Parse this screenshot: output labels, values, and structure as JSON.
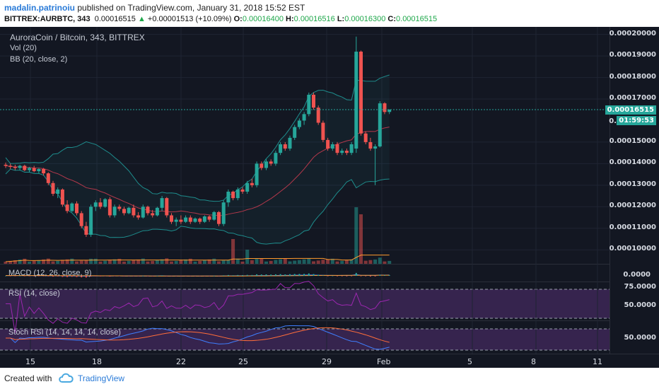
{
  "header": {
    "author": "madalin.patrinoiu",
    "published_text": " published on TradingView.com, January 31, 2018 15:52 EST",
    "symbol": "BITTREX:AURBTC, 343",
    "last": "0.00016515",
    "change_arrow": "▲",
    "change": "+0.00001513 (+10.09%)",
    "o_label": "O:",
    "o": "0.00016400",
    "h_label": "H:",
    "h": "0.00016516",
    "l_label": "L:",
    "l": "0.00016300",
    "c_label": "C:",
    "c": "0.00016515"
  },
  "legends": {
    "title": "AuroraCoin / Bitcoin, 343, BITTREX",
    "vol": "Vol (20)",
    "bb": "BB (20, close, 2)",
    "macd": "MACD (12, 26, close, 9)",
    "rsi": "RSI (14, close)",
    "stoch": "Stoch RSI (14, 14, 14, 14, close)"
  },
  "price_axis": [
    "0.00020000",
    "0.00019000",
    "0.00018000",
    "0.00017000",
    "0.00015000",
    "0.00014000",
    "0.00013000",
    "0.00012000",
    "0.00011000",
    "0.00010000"
  ],
  "partial_label": "0.0",
  "last_price_badge": "0.00016515",
  "countdown_badge": "01:59:53",
  "macd_axis": "0.0000",
  "rsi_axis": [
    "75.0000",
    "50.0000"
  ],
  "stoch_axis": "50.0000",
  "time_axis": [
    "15",
    "18",
    "22",
    "25",
    "29",
    "Feb",
    "5",
    "8",
    "11"
  ],
  "footer": {
    "created_with": "Created with",
    "brand": "TradingView"
  },
  "colors": {
    "up": "#26a69a",
    "down": "#ef5350",
    "bb": "#1e8c8c",
    "accent": "#2a7bd8"
  },
  "chart_data": {
    "type": "candlestick",
    "symbol": "AURBTC",
    "ohlc": [
      [
        0.0001395,
        0.0001405,
        0.000138,
        0.000139
      ],
      [
        0.000139,
        0.00014,
        0.0001375,
        0.0001385
      ],
      [
        0.0001385,
        0.0001395,
        0.000137,
        0.000138
      ],
      [
        0.000138,
        0.0001395,
        0.000137,
        0.000139
      ],
      [
        0.000139,
        0.0001395,
        0.0001365,
        0.000137
      ],
      [
        0.000137,
        0.0001385,
        0.000136,
        0.000138
      ],
      [
        0.000138,
        0.000139,
        0.000136,
        0.0001365
      ],
      [
        0.0001365,
        0.000138,
        0.0001355,
        0.0001375
      ],
      [
        0.0001375,
        0.000138,
        0.0001345,
        0.0001355
      ],
      [
        0.0001355,
        0.000136,
        0.00013,
        0.000131
      ],
      [
        0.000131,
        0.000132,
        0.000125,
        0.000126
      ],
      [
        0.000126,
        0.000129,
        0.000124,
        0.000128
      ],
      [
        0.000128,
        0.0001285,
        0.00012,
        0.000121
      ],
      [
        0.000121,
        0.000123,
        0.000117,
        0.000118
      ],
      [
        0.000118,
        0.000122,
        0.0001175,
        0.0001215
      ],
      [
        0.0001215,
        0.0001225,
        0.000116,
        0.000117
      ],
      [
        0.000117,
        0.000118,
        0.00011,
        0.000111
      ],
      [
        0.000111,
        0.000113,
        0.000106,
        0.000107
      ],
      [
        0.000107,
        0.000121,
        0.000106,
        0.00012
      ],
      [
        0.00012,
        0.000123,
        0.000118,
        0.000122
      ],
      [
        0.000122,
        0.000124,
        0.000119,
        0.00012
      ],
      [
        0.00012,
        0.000124,
        0.0001195,
        0.0001235
      ],
      [
        0.0001235,
        0.0001245,
        0.000115,
        0.000116
      ],
      [
        0.000116,
        0.000121,
        0.000115,
        0.00012
      ],
      [
        0.00012,
        0.000121,
        0.000118,
        0.000119
      ],
      [
        0.000119,
        0.00012,
        0.000116,
        0.000117
      ],
      [
        0.000117,
        0.00012,
        0.0001165,
        0.0001195
      ],
      [
        0.0001195,
        0.000121,
        0.000115,
        0.000116
      ],
      [
        0.000116,
        0.0001175,
        0.000114,
        0.000115
      ],
      [
        0.000115,
        0.000121,
        0.0001145,
        0.00012
      ],
      [
        0.00012,
        0.0001205,
        0.000116,
        0.000117
      ],
      [
        0.000117,
        0.0001185,
        0.000115,
        0.000116
      ],
      [
        0.000116,
        0.00012,
        0.0001155,
        0.0001195
      ],
      [
        0.0001195,
        0.000125,
        0.000118,
        0.000124
      ],
      [
        0.000124,
        0.0001245,
        0.000115,
        0.000116
      ],
      [
        0.000116,
        0.000117,
        0.000112,
        0.000113
      ],
      [
        0.000113,
        0.000115,
        0.000111,
        0.000114
      ],
      [
        0.000114,
        0.000116,
        0.000112,
        0.000113
      ],
      [
        0.000113,
        0.000116,
        0.0001125,
        0.000115
      ],
      [
        0.000115,
        0.000116,
        0.000112,
        0.000113
      ],
      [
        0.000113,
        0.000115,
        0.0001125,
        0.0001145
      ],
      [
        0.0001145,
        0.000115,
        0.000112,
        0.000113
      ],
      [
        0.000113,
        0.000116,
        0.0001125,
        0.0001155
      ],
      [
        0.0001155,
        0.000116,
        0.000113,
        0.000114
      ],
      [
        0.000114,
        0.000118,
        0.0001135,
        0.0001175
      ],
      [
        0.0001175,
        0.000118,
        0.000111,
        0.000112
      ],
      [
        0.000112,
        0.000123,
        0.000111,
        0.000122
      ],
      [
        0.000122,
        0.000128,
        0.00012,
        0.000127
      ],
      [
        0.000127,
        0.0001275,
        0.000123,
        0.000124
      ],
      [
        0.000124,
        0.000129,
        0.000123,
        0.000128
      ],
      [
        0.000128,
        0.000129,
        0.000126,
        0.000127
      ],
      [
        0.000127,
        0.000132,
        0.000126,
        0.000131
      ],
      [
        0.000131,
        0.000133,
        0.000129,
        0.00013
      ],
      [
        0.00013,
        0.000141,
        0.000129,
        0.00014
      ],
      [
        0.00014,
        0.000141,
        0.000137,
        0.000138
      ],
      [
        0.000138,
        0.000142,
        0.000137,
        0.000141
      ],
      [
        0.000141,
        0.000142,
        0.000139,
        0.00014
      ],
      [
        0.00014,
        0.000146,
        0.000139,
        0.000145
      ],
      [
        0.000145,
        0.00015,
        0.000144,
        0.000149
      ],
      [
        0.000149,
        0.00015,
        0.000146,
        0.000147
      ],
      [
        0.000147,
        0.000153,
        0.000146,
        0.000152
      ],
      [
        0.000152,
        0.000158,
        0.000151,
        0.000157
      ],
      [
        0.000157,
        0.000161,
        0.000156,
        0.00016
      ],
      [
        0.00016,
        0.000164,
        0.000158,
        0.000163
      ],
      [
        0.000163,
        0.000173,
        0.000162,
        0.000172
      ],
      [
        0.000172,
        0.000173,
        0.000165,
        0.000166
      ],
      [
        0.000166,
        0.000167,
        0.000158,
        0.000159
      ],
      [
        0.000159,
        0.00016,
        0.00015,
        0.000151
      ],
      [
        0.000151,
        0.000152,
        0.000146,
        0.000147
      ],
      [
        0.000147,
        0.00015,
        0.000146,
        0.000149
      ],
      [
        0.000149,
        0.00015,
        0.000144,
        0.000145
      ],
      [
        0.000145,
        0.000147,
        0.000144,
        0.000146
      ],
      [
        0.000146,
        0.000147,
        0.000144,
        0.000145
      ],
      [
        0.000145,
        0.00015,
        0.000144,
        0.000149
      ],
      [
        0.000147,
        0.000199,
        0.000145,
        0.000192
      ],
      [
        0.000192,
        0.0001925,
        0.000153,
        0.000154
      ],
      [
        0.000154,
        0.000155,
        0.000149,
        0.00015
      ],
      [
        0.00015,
        0.000152,
        0.000146,
        0.000147
      ],
      [
        0.000147,
        0.000149,
        0.00013,
        0.000148
      ],
      [
        0.000148,
        0.000169,
        0.0001475,
        0.000168
      ],
      [
        0.000168,
        0.0001685,
        0.000163,
        0.000164
      ],
      [
        0.000164,
        0.0001652,
        0.000163,
        0.0001651
      ]
    ],
    "price_ylim": [
      9.35e-05,
      0.0002035
    ],
    "last_price": 0.00016515
  }
}
